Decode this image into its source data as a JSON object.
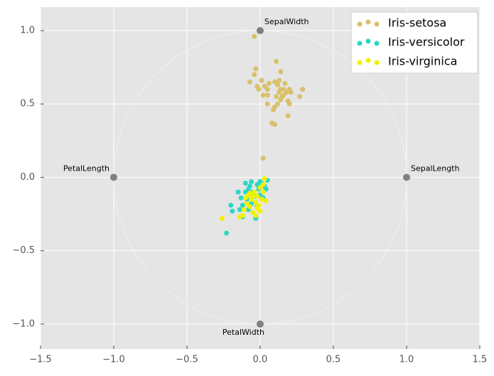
{
  "chart_data": {
    "type": "scatter",
    "xlim": [
      -1.5,
      1.5
    ],
    "ylim": [
      -1.17,
      1.16
    ],
    "xticks": [
      {
        "value": -1.5,
        "label": "−1.5"
      },
      {
        "value": -1.0,
        "label": "−1.0"
      },
      {
        "value": -0.5,
        "label": "−0.5"
      },
      {
        "value": 0.0,
        "label": "0.0"
      },
      {
        "value": 0.5,
        "label": "0.5"
      },
      {
        "value": 1.0,
        "label": "1.0"
      },
      {
        "value": 1.5,
        "label": "1.5"
      }
    ],
    "yticks": [
      {
        "value": -1.0,
        "label": "−1.0"
      },
      {
        "value": -0.5,
        "label": "−0.5"
      },
      {
        "value": 0.0,
        "label": "0.0"
      },
      {
        "value": 0.5,
        "label": "0.5"
      },
      {
        "value": 1.0,
        "label": "1.0"
      }
    ],
    "grid": true,
    "legend": "upper right",
    "anchors": [
      {
        "label": "SepalLength",
        "x": 1,
        "y": 0
      },
      {
        "label": "SepalWidth",
        "x": 0,
        "y": 1
      },
      {
        "label": "PetalLength",
        "x": -1,
        "y": 0
      },
      {
        "label": "PetalWidth",
        "x": 0,
        "y": -1
      }
    ],
    "series": [
      {
        "name": "Iris-setosa",
        "color": "#d9c06b",
        "x": [
          -0.04,
          -0.03,
          -0.04,
          0.11,
          0.14,
          -0.07,
          0.01,
          0.03,
          -0.01,
          -0.02,
          0.05,
          0.06,
          0.1,
          0.12,
          0.13,
          0.17,
          0.2,
          0.21,
          0.18,
          0.15,
          0.14,
          0.16,
          0.29,
          0.27,
          0.12,
          0.14,
          0.19,
          0.2,
          0.1,
          0.09,
          0.05,
          0.02,
          0.05,
          0.19,
          0.08,
          0.1,
          0.02,
          0.13,
          0.11,
          0.16
        ],
        "y": [
          0.96,
          0.74,
          0.7,
          0.79,
          0.72,
          0.65,
          0.66,
          0.62,
          0.6,
          0.62,
          0.6,
          0.64,
          0.65,
          0.63,
          0.66,
          0.64,
          0.6,
          0.58,
          0.58,
          0.55,
          0.6,
          0.6,
          0.6,
          0.55,
          0.5,
          0.53,
          0.52,
          0.5,
          0.48,
          0.46,
          0.56,
          0.56,
          0.5,
          0.42,
          0.37,
          0.36,
          0.13,
          0.58,
          0.55,
          0.56
        ]
      },
      {
        "name": "Iris-versicolor",
        "color": "#2dd6c6",
        "x": [
          -0.23,
          -0.2,
          -0.19,
          -0.15,
          -0.13,
          -0.12,
          -0.1,
          -0.1,
          -0.09,
          -0.08,
          -0.07,
          -0.06,
          -0.05,
          -0.04,
          -0.03,
          -0.02,
          -0.01,
          0.0,
          0.01,
          0.02,
          0.03,
          0.05,
          0.04,
          -0.12,
          -0.06,
          -0.02,
          0.0,
          -0.08,
          0.02,
          -0.14
        ],
        "y": [
          -0.38,
          -0.19,
          -0.23,
          -0.1,
          -0.14,
          -0.19,
          -0.04,
          -0.1,
          -0.15,
          -0.22,
          -0.06,
          -0.03,
          -0.1,
          -0.13,
          -0.28,
          -0.05,
          -0.08,
          -0.12,
          -0.04,
          -0.1,
          -0.06,
          -0.02,
          -0.08,
          -0.27,
          -0.18,
          -0.2,
          -0.03,
          -0.08,
          -0.14,
          -0.22
        ]
      },
      {
        "name": "Iris-virginica",
        "color": "#f2f200",
        "x": [
          -0.26,
          -0.14,
          -0.12,
          -0.1,
          -0.08,
          -0.07,
          -0.06,
          -0.05,
          -0.04,
          -0.03,
          -0.02,
          -0.01,
          0.0,
          0.01,
          0.02,
          0.03,
          0.04,
          -0.09,
          -0.05,
          -0.02,
          0.0,
          -0.11,
          -0.07,
          0.02,
          -0.03
        ],
        "y": [
          -0.28,
          -0.27,
          -0.26,
          -0.14,
          -0.12,
          -0.2,
          -0.15,
          -0.24,
          -0.1,
          -0.17,
          -0.13,
          -0.19,
          -0.07,
          -0.15,
          -0.05,
          -0.01,
          -0.16,
          -0.18,
          -0.13,
          -0.21,
          -0.23,
          -0.22,
          -0.11,
          -0.1,
          -0.26
        ]
      }
    ]
  }
}
